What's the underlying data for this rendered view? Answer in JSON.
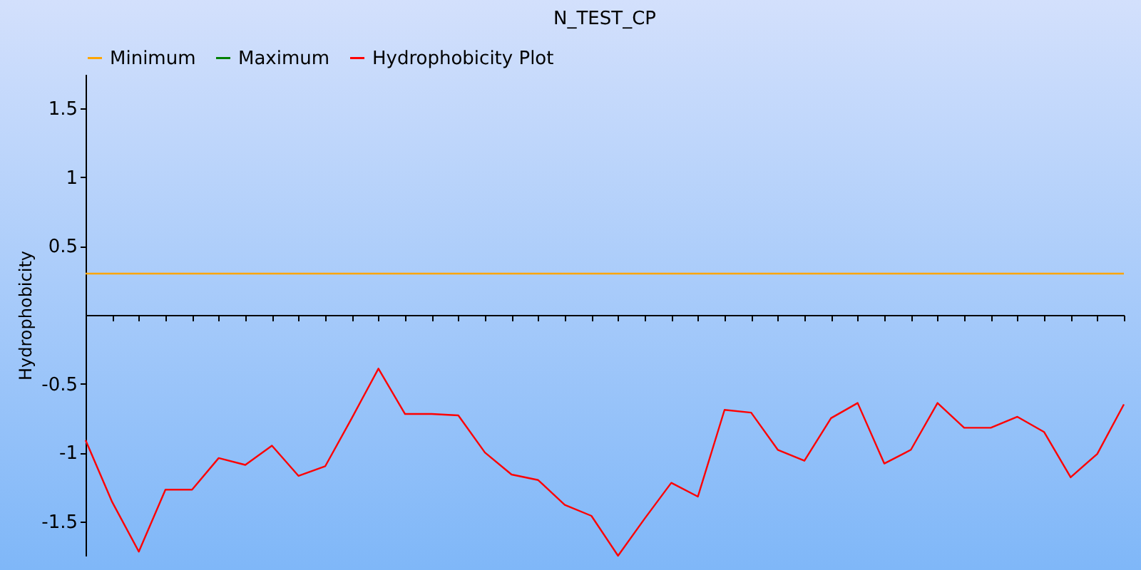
{
  "chart_data": {
    "type": "line",
    "title": "N_TEST_CP",
    "ylabel": "Hydrophobicity",
    "categories": [
      null,
      null,
      null,
      null,
      null,
      null,
      null,
      null,
      null,
      null,
      null,
      null,
      null,
      null,
      null,
      null,
      null,
      null,
      null,
      null,
      null,
      null,
      null,
      null,
      null,
      null,
      null,
      null,
      null,
      null,
      null,
      null,
      null,
      null,
      null,
      null,
      null,
      null,
      null,
      null
    ],
    "series": [
      {
        "name": "Minimum",
        "color": "#ffa500",
        "values": [
          0.3,
          0.3,
          0.3,
          0.3,
          0.3,
          0.3,
          0.3,
          0.3,
          0.3,
          0.3,
          0.3,
          0.3,
          0.3,
          0.3,
          0.3,
          0.3,
          0.3,
          0.3,
          0.3,
          0.3,
          0.3,
          0.3,
          0.3,
          0.3,
          0.3,
          0.3,
          0.3,
          0.3,
          0.3,
          0.3,
          0.3,
          0.3,
          0.3,
          0.3,
          0.3,
          0.3,
          0.3,
          0.3,
          0.3,
          0.3
        ]
      },
      {
        "name": "Maximum",
        "color": "#008000",
        "values": [
          null,
          null,
          null,
          null,
          null,
          null,
          null,
          null,
          null,
          null,
          null,
          null,
          null,
          null,
          null,
          null,
          null,
          null,
          null,
          null,
          null,
          null,
          null,
          null,
          null,
          null,
          null,
          null,
          null,
          null,
          null,
          null,
          null,
          null,
          null,
          null,
          null,
          null,
          null,
          null
        ]
      },
      {
        "name": "Hydrophobicity Plot",
        "color": "#ff0000",
        "values": [
          -0.91,
          -1.36,
          -1.72,
          -1.27,
          -1.27,
          -1.04,
          -1.09,
          -0.95,
          -1.17,
          -1.1,
          -0.75,
          -0.39,
          -0.72,
          -0.72,
          -0.73,
          -1.0,
          -1.16,
          -1.2,
          -1.38,
          -1.46,
          -1.75,
          -1.48,
          -1.22,
          -1.32,
          -0.69,
          -0.71,
          -0.98,
          -1.06,
          -0.75,
          -0.64,
          -1.08,
          -0.98,
          -0.64,
          -0.82,
          -0.82,
          -0.74,
          -0.85,
          -1.18,
          -1.01,
          -0.65
        ]
      }
    ],
    "ylim": [
      -1.75,
      1.75
    ],
    "yticks": [
      -1.5,
      -1,
      -0.5,
      0.5,
      1,
      1.5
    ],
    "tick_labels": "y",
    "grid": false,
    "legend": "top",
    "marker": "none",
    "line_style": "solid"
  }
}
